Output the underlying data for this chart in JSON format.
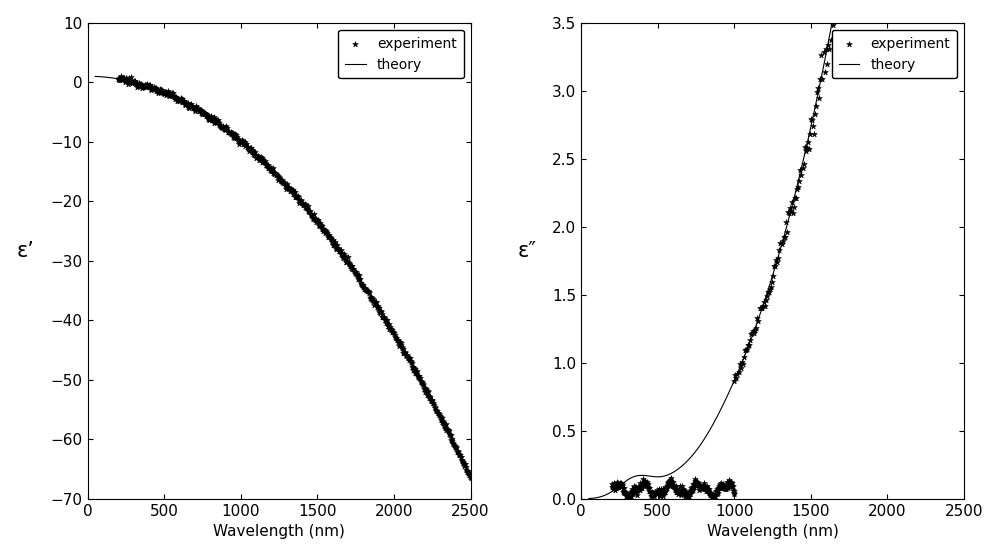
{
  "xlim1": [
    0,
    2500
  ],
  "ylim1": [
    -70,
    10
  ],
  "xlim2": [
    0,
    2500
  ],
  "ylim2": [
    0,
    3.5
  ],
  "xticks": [
    0,
    500,
    1000,
    1500,
    2000,
    2500
  ],
  "yticks1": [
    -70,
    -60,
    -50,
    -40,
    -30,
    -20,
    -10,
    0,
    10
  ],
  "yticks2": [
    0.0,
    0.5,
    1.0,
    1.5,
    2.0,
    2.5,
    3.0,
    3.5
  ],
  "xlabel": "Wavelength (nm)",
  "ylabel1": "ε’",
  "ylabel2": "ε″",
  "legend_labels": [
    "experiment",
    "theory"
  ],
  "bg_color": "#ffffff",
  "line_color": "#000000",
  "scatter_color": "#000000",
  "scatter_marker": "*",
  "scatter_size": 18,
  "line_width": 0.8,
  "font_size": 11,
  "legend_fontsize": 10
}
